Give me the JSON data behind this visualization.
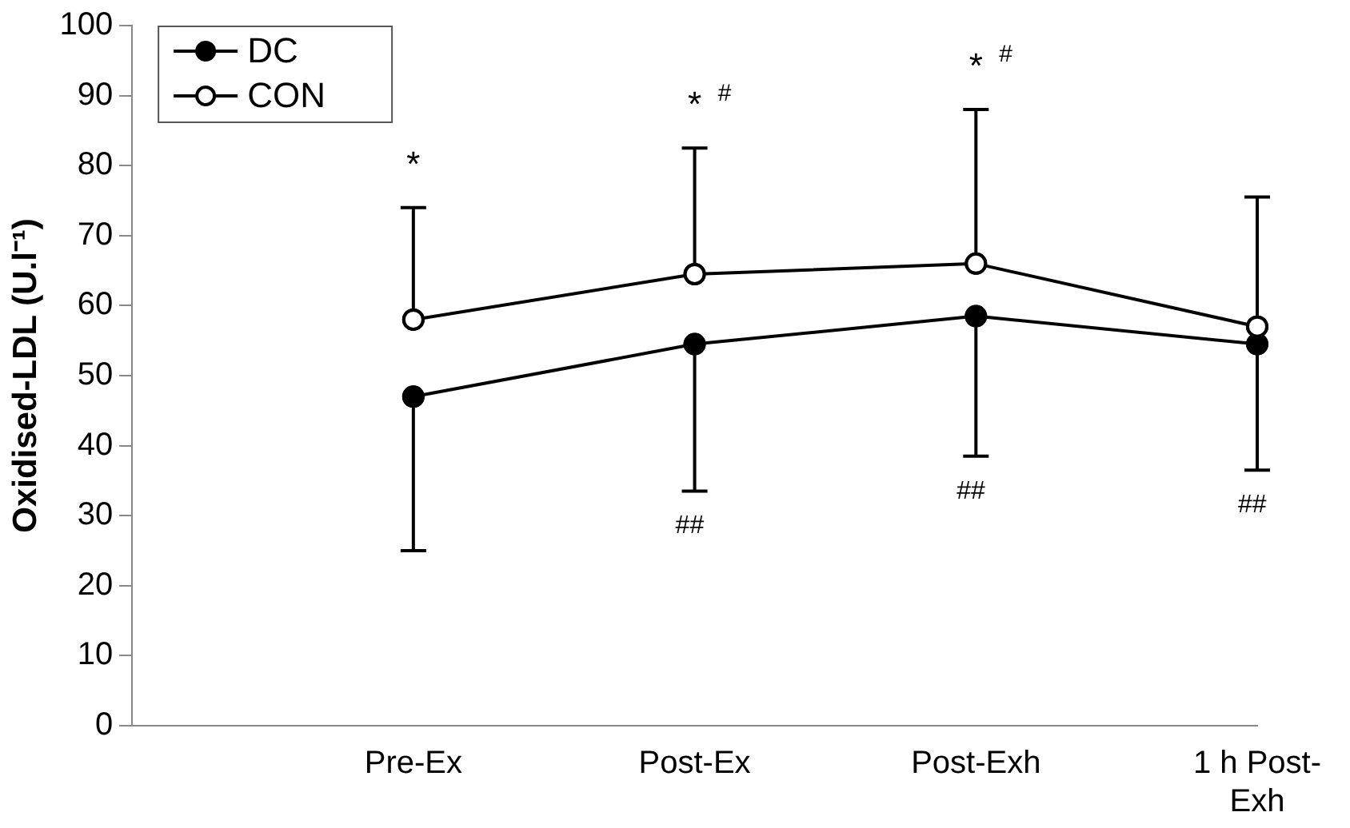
{
  "chart_data": {
    "type": "line",
    "ylabel": "Oxidised-LDL (U.l⁻¹)",
    "categories": [
      null,
      "Pre-Ex",
      "Post-Ex",
      "Post-Exh",
      "1 h Post-Exh"
    ],
    "series": [
      {
        "name": "DC",
        "color": "#000000",
        "values": [
          null,
          47,
          54.5,
          58.5,
          54.5
        ],
        "errors": [
          null,
          [
            25,
            47
          ],
          [
            33.5,
            54.5
          ],
          [
            38.5,
            58.5
          ],
          [
            36.5,
            54.5
          ]
        ]
      },
      {
        "name": "CON",
        "color": "#000000",
        "values": [
          null,
          58,
          64.5,
          66,
          57
        ],
        "errors": [
          null,
          [
            58,
            74
          ],
          [
            64.5,
            82.5
          ],
          [
            66,
            88
          ],
          [
            57,
            75.5
          ]
        ]
      }
    ],
    "ylim": [
      0,
      100
    ],
    "yticks": [
      0,
      10,
      20,
      30,
      40,
      50,
      60,
      70,
      80,
      90,
      100
    ],
    "grid": false,
    "legend": "top left",
    "marker": "circle",
    "line_style": "solid",
    "annotations": [
      "*",
      "* #",
      "* #",
      "##",
      "##",
      "##"
    ]
  }
}
